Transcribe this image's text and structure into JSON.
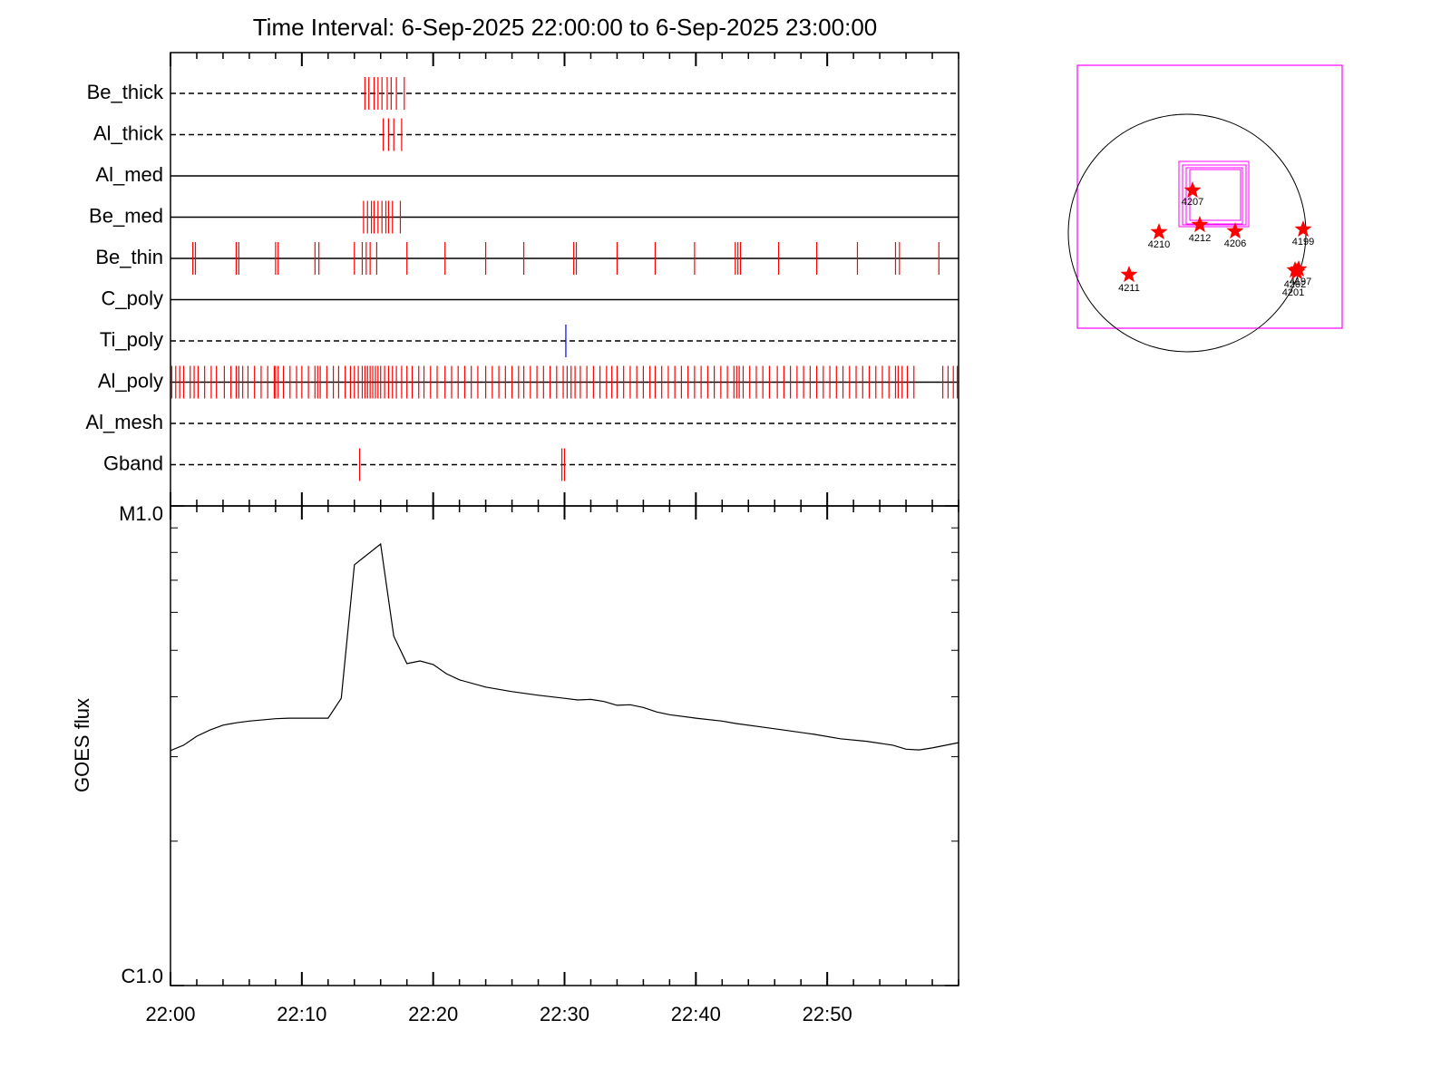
{
  "chart_data": [
    {
      "type": "event",
      "title": "Time Interval:  6-Sep-2025 22:00:00 to  6-Sep-2025 23:00:00",
      "xlim": [
        0,
        60
      ],
      "xminor_step": 2,
      "series": [
        {
          "name": "Be_thick",
          "line": "dashed",
          "color": "#ff0000",
          "values": [
            14.8,
            15.1,
            15.5,
            15.8,
            16.1,
            16.5,
            16.8,
            17.2,
            17.8
          ]
        },
        {
          "name": "Al_thick",
          "line": "dashed",
          "color": "#ff0000",
          "values": [
            16.2,
            16.6,
            17.0,
            17.6
          ]
        },
        {
          "name": "Al_med",
          "line": "solid",
          "color": "#ff0000",
          "values": []
        },
        {
          "name": "Be_med",
          "line": "solid",
          "color": "#ff0000",
          "values": [
            14.7,
            15.0,
            15.3,
            15.5,
            15.8,
            16.1,
            16.4,
            16.6,
            16.9,
            17.5
          ]
        },
        {
          "name": "Be_thin",
          "line": "solid",
          "color": "#ff0000",
          "values": [
            1.7,
            1.9,
            5.0,
            5.2,
            8.0,
            8.2,
            11.0,
            11.3,
            14.0,
            14.6,
            14.9,
            15.2,
            15.7,
            18.0,
            20.9,
            24.0,
            26.9,
            30.7,
            30.9,
            34.0,
            36.9,
            39.9,
            43.0,
            43.2,
            43.4,
            46.3,
            49.2,
            52.3,
            55.2,
            55.5,
            58.5
          ]
        },
        {
          "name": "C_poly",
          "line": "solid",
          "color": "#ff0000",
          "values": []
        },
        {
          "name": "Ti_poly",
          "line": "dashed",
          "color": "#0000ff",
          "values": [
            30.1
          ]
        },
        {
          "name": "Al_poly",
          "line": "solid",
          "color": "#ff0000",
          "values": [
            0.1,
            0.4,
            0.7,
            1.0,
            1.5,
            1.8,
            2.1,
            2.6,
            3.1,
            3.5,
            4.1,
            4.6,
            5.0,
            5.2,
            5.5,
            5.9,
            6.4,
            6.9,
            7.4,
            7.9,
            8.0,
            8.2,
            8.6,
            9.1,
            9.6,
            10.0,
            10.5,
            11.0,
            11.2,
            11.4,
            11.9,
            12.4,
            12.8,
            13.3,
            13.7,
            14.0,
            14.3,
            14.6,
            14.8,
            15.0,
            15.2,
            15.4,
            15.6,
            15.8,
            16.0,
            16.3,
            16.6,
            16.9,
            17.2,
            17.6,
            18.0,
            18.4,
            18.9,
            19.3,
            19.8,
            20.3,
            20.9,
            21.4,
            21.9,
            22.4,
            22.9,
            23.4,
            24.0,
            24.5,
            25.0,
            25.5,
            26.0,
            26.5,
            26.9,
            27.4,
            27.9,
            28.4,
            28.9,
            29.4,
            29.9,
            30.2,
            30.5,
            30.8,
            31.2,
            31.7,
            32.2,
            32.7,
            33.2,
            33.6,
            34.0,
            34.5,
            35.0,
            35.5,
            36.0,
            36.5,
            36.9,
            37.4,
            37.9,
            38.4,
            38.9,
            39.4,
            39.9,
            40.4,
            40.9,
            41.4,
            41.9,
            42.4,
            42.9,
            43.1,
            43.3,
            43.6,
            44.1,
            44.6,
            45.1,
            45.6,
            46.2,
            46.7,
            47.2,
            47.7,
            48.2,
            48.7,
            49.2,
            49.7,
            50.2,
            50.7,
            51.2,
            51.7,
            52.2,
            52.7,
            53.2,
            53.7,
            54.2,
            54.7,
            55.2,
            55.4,
            55.7,
            56.1,
            56.6,
            58.8,
            59.2,
            59.6,
            59.9
          ]
        },
        {
          "name": "Al_mesh",
          "line": "dashed",
          "color": "#ff0000",
          "values": []
        },
        {
          "name": "Gband",
          "line": "dashed",
          "color": "#ff0000",
          "values": [
            14.4,
            29.8,
            30.0
          ]
        }
      ]
    },
    {
      "type": "line",
      "ylabel": "GOES flux",
      "color": "#000000",
      "log_scale": true,
      "xlim": [
        0,
        60
      ],
      "xticks": [
        {
          "value": 0,
          "label": "22:00"
        },
        {
          "value": 10,
          "label": "22:10"
        },
        {
          "value": 20,
          "label": "22:20"
        },
        {
          "value": 30,
          "label": "22:30"
        },
        {
          "value": 40,
          "label": "22:40"
        },
        {
          "value": 50,
          "label": "22:50"
        }
      ],
      "ylim": [
        1e-06,
        1e-05
      ],
      "yticks": [
        {
          "value": 1e-06,
          "label": "C1.0"
        },
        {
          "value": 1e-05,
          "label": "M1.0"
        }
      ],
      "x": [
        0,
        1,
        2,
        3,
        4,
        5,
        6,
        8,
        9,
        12,
        13,
        14,
        16,
        17,
        18,
        19,
        20,
        21,
        22,
        24,
        26,
        28,
        30,
        31,
        32,
        33,
        34,
        35,
        36,
        37,
        38,
        40,
        42,
        43,
        45,
        47,
        49,
        51,
        53,
        55,
        56,
        57,
        58,
        60
      ],
      "values": [
        3.09e-06,
        3.17e-06,
        3.31e-06,
        3.41e-06,
        3.49e-06,
        3.53e-06,
        3.56e-06,
        3.6e-06,
        3.61e-06,
        3.61e-06,
        3.97e-06,
        7.54e-06,
        8.33e-06,
        5.35e-06,
        4.69e-06,
        4.75e-06,
        4.67e-06,
        4.47e-06,
        4.34e-06,
        4.19e-06,
        4.1e-06,
        4.03e-06,
        3.97e-06,
        3.94e-06,
        3.95e-06,
        3.91e-06,
        3.84e-06,
        3.85e-06,
        3.8e-06,
        3.72e-06,
        3.67e-06,
        3.61e-06,
        3.56e-06,
        3.52e-06,
        3.46e-06,
        3.4e-06,
        3.34e-06,
        3.27e-06,
        3.23e-06,
        3.17e-06,
        3.11e-06,
        3.1e-06,
        3.13e-06,
        3.21e-06
      ]
    }
  ],
  "map": {
    "regions": [
      "4207",
      "4212",
      "4210",
      "4206",
      "4199",
      "4211",
      "4197",
      "4202",
      "4201"
    ]
  }
}
